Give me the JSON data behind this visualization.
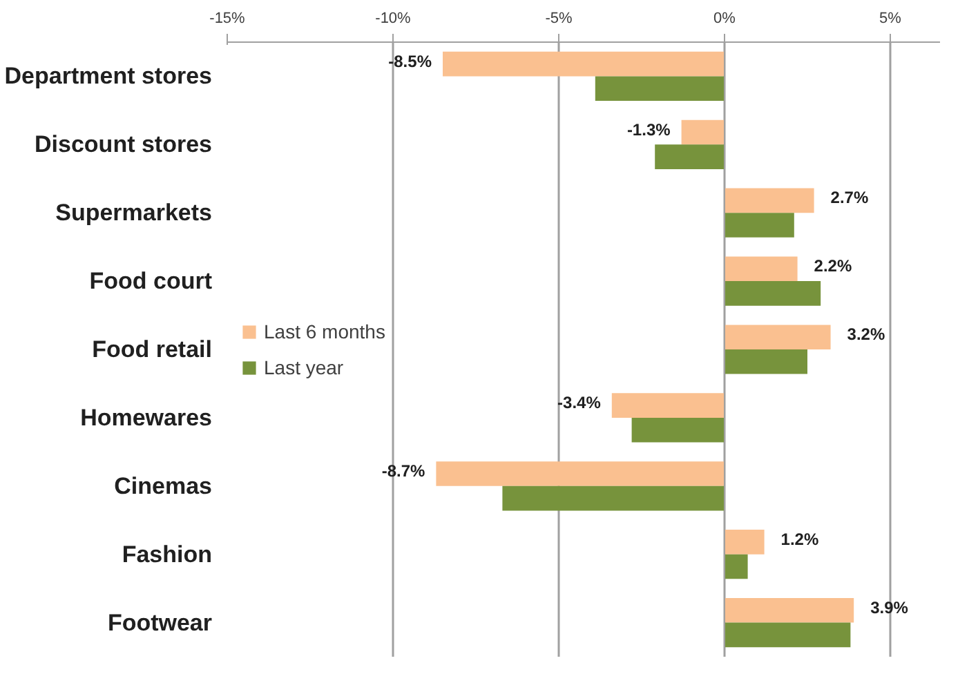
{
  "chart_data": {
    "type": "bar",
    "orientation": "horizontal",
    "categories": [
      "Department stores",
      "Discount stores",
      "Supermarkets",
      "Food court",
      "Food retail",
      "Homewares",
      "Cinemas",
      "Fashion",
      "Footwear"
    ],
    "series": [
      {
        "name": "Last 6 months",
        "color": "#fac090",
        "values": [
          -8.5,
          -1.3,
          2.7,
          2.2,
          3.2,
          -3.4,
          -8.7,
          1.2,
          3.9
        ],
        "value_labels": [
          "-8.5%",
          "-1.3%",
          "2.7%",
          "2.2%",
          "3.2%",
          "-3.4%",
          "-8.7%",
          "1.2%",
          "3.9%"
        ]
      },
      {
        "name": "Last year",
        "color": "#77933c",
        "values": [
          -3.9,
          -2.1,
          2.1,
          2.9,
          2.5,
          -2.8,
          -6.7,
          0.7,
          3.8
        ]
      }
    ],
    "xlim": [
      -15,
      6.5
    ],
    "xticks": [
      {
        "value": -15,
        "label": "-15%"
      },
      {
        "value": -10,
        "label": "-10%"
      },
      {
        "value": -5,
        "label": "-5%"
      },
      {
        "value": 0,
        "label": "0%"
      },
      {
        "value": 5,
        "label": "5%"
      }
    ],
    "grid": "x",
    "legend": "left"
  }
}
